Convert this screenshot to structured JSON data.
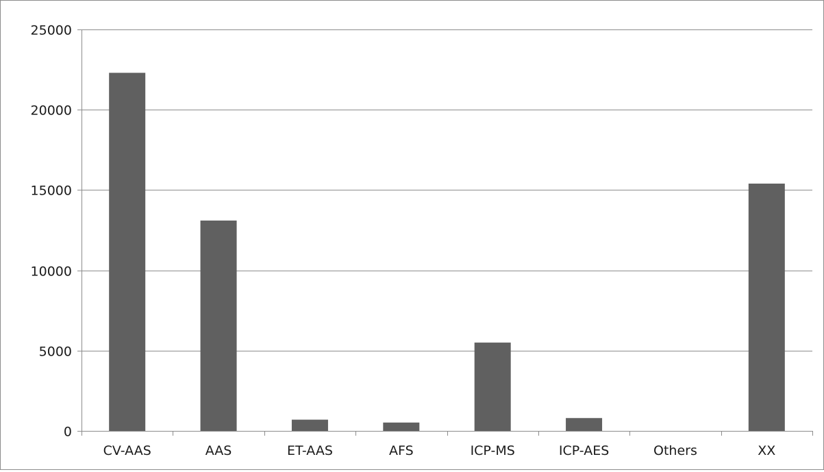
{
  "chart_data": {
    "type": "bar",
    "title": "",
    "xlabel": "",
    "ylabel": "",
    "categories": [
      "CV-AAS",
      "AAS",
      "ET-AAS",
      "AFS",
      "ICP-MS",
      "ICP-AES",
      "Others",
      "XX"
    ],
    "values": [
      22300,
      13100,
      700,
      520,
      5500,
      800,
      0,
      15400
    ],
    "ylim": [
      0,
      25000
    ],
    "yticks": [
      "0",
      "5000",
      "10000",
      "15000",
      "20000",
      "25000"
    ],
    "grid": true,
    "legend": "none",
    "colors": {
      "bar": "#606060",
      "grid": "#8c8c8c",
      "axis": "#8c8c8c",
      "frame": "#8c8c8c"
    }
  }
}
